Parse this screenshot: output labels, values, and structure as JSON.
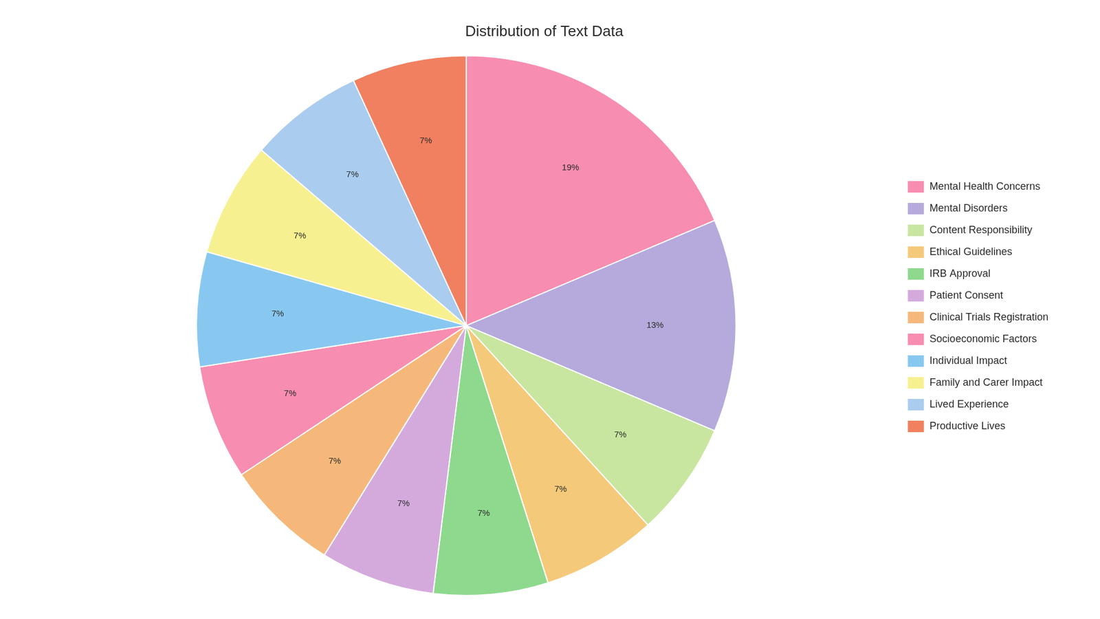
{
  "chart_data": {
    "type": "pie",
    "title": "Distribution of Text Data",
    "categories": [
      "Mental Health Concerns",
      "Mental Disorders",
      "Content Responsibility",
      "Ethical Guidelines",
      "IRB Approval",
      "Patient Consent",
      "Clinical Trials Registration",
      "Socioeconomic Factors",
      "Individual Impact",
      "Family and Carer Impact",
      "Lived Experience",
      "Productive Lives"
    ],
    "values": [
      19,
      13,
      7,
      7,
      7,
      7,
      7,
      7,
      7,
      7,
      7,
      7
    ],
    "value_labels": [
      "19%",
      "13%",
      "7%",
      "7%",
      "7%",
      "7%",
      "7%",
      "7%",
      "7%",
      "7%",
      "7%",
      "7%"
    ],
    "colors": [
      "#F78DB0",
      "#B5AADB",
      "#C8E6A0",
      "#F5C97A",
      "#8ED98E",
      "#D4AADC",
      "#F5B87A",
      "#F78DB0",
      "#88C8F0",
      "#F7F090",
      "#AACCEE",
      "#F08060"
    ],
    "data_labels": true,
    "legend": "right"
  }
}
